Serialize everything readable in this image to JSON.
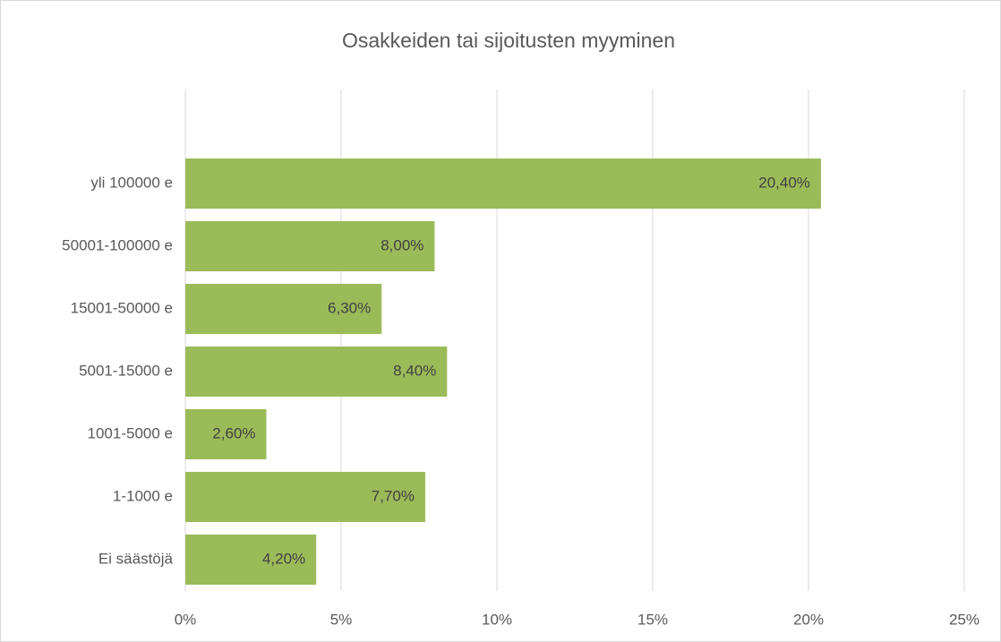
{
  "chart_data": {
    "type": "bar",
    "orientation": "horizontal",
    "title": "Osakkeiden tai sijoitusten myyminen",
    "categories": [
      "yli 100000 e",
      "50001-100000 e",
      "15001-50000 e",
      "5001-15000 e",
      "1001-5000 e",
      "1-1000 e",
      "Ei säästöjä"
    ],
    "values": [
      20.4,
      8.0,
      6.3,
      8.4,
      2.6,
      7.7,
      4.2
    ],
    "value_labels": [
      "20,40%",
      "8,00%",
      "6,30%",
      "8,40%",
      "2,60%",
      "7,70%",
      "4,20%"
    ],
    "color": "#9bbb59",
    "xlim": [
      0,
      25
    ],
    "xticks": [
      {
        "value": 0,
        "label": "0%"
      },
      {
        "value": 5,
        "label": "5%"
      },
      {
        "value": 10,
        "label": "10%"
      },
      {
        "value": 15,
        "label": "15%"
      },
      {
        "value": 20,
        "label": "20%"
      },
      {
        "value": 25,
        "label": "25%"
      }
    ],
    "grid": true
  }
}
